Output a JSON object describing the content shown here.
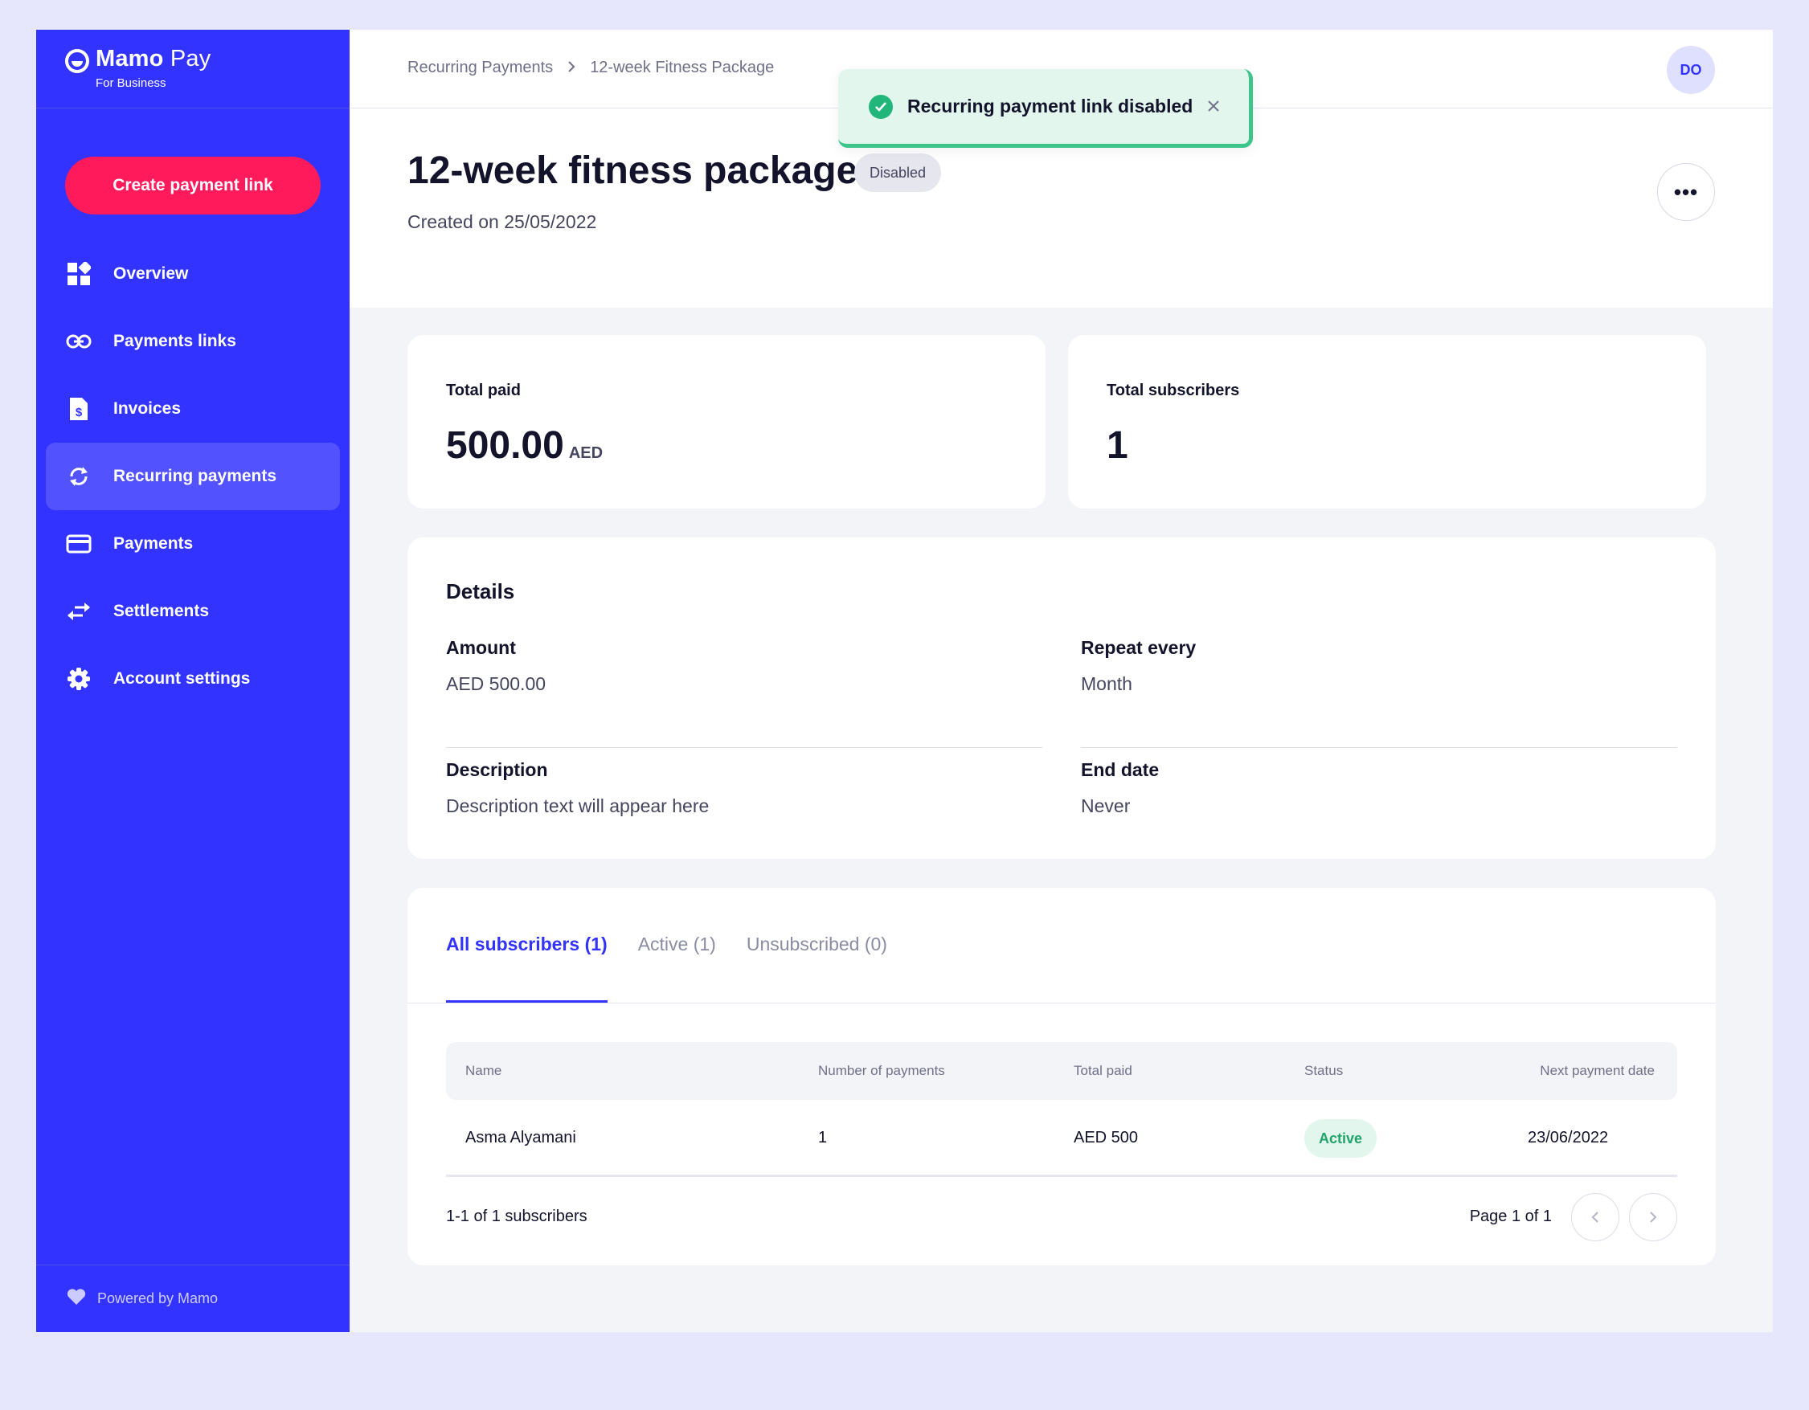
{
  "brand": {
    "name_bold": "Mamo",
    "name_rest": " Pay",
    "subtitle": "For Business"
  },
  "sidebar": {
    "create_label": "Create payment link",
    "items": [
      {
        "label": "Overview",
        "icon": "grid-icon"
      },
      {
        "label": "Payments links",
        "icon": "link-icon"
      },
      {
        "label": "Invoices",
        "icon": "invoice-icon"
      },
      {
        "label": "Recurring payments",
        "icon": "refresh-icon",
        "active": true
      },
      {
        "label": "Payments",
        "icon": "card-icon"
      },
      {
        "label": "Settlements",
        "icon": "transfer-icon"
      },
      {
        "label": "Account settings",
        "icon": "gear-icon"
      }
    ],
    "powered": "Powered by Mamo"
  },
  "topbar": {
    "breadcrumb": [
      "Recurring Payments",
      "12-week Fitness Package"
    ],
    "avatar": "DO"
  },
  "toast": {
    "message": "Recurring payment link disabled"
  },
  "header": {
    "title": "12-week fitness package",
    "badge": "Disabled",
    "created": "Created on 25/05/2022",
    "more": "•••"
  },
  "stats": {
    "total_paid_label": "Total paid",
    "total_paid_value": "500.00",
    "total_paid_unit": "AED",
    "subscribers_label": "Total subscribers",
    "subscribers_value": "1"
  },
  "details": {
    "title": "Details",
    "amount_label": "Amount",
    "amount_value": "AED 500.00",
    "repeat_label": "Repeat every",
    "repeat_value": "Month",
    "description_label": "Description",
    "description_value": "Description text will appear here",
    "end_label": "End date",
    "end_value": "Never"
  },
  "subscribers": {
    "tabs": [
      "All subscribers (1)",
      "Active (1)",
      "Unsubscribed (0)"
    ],
    "columns": [
      "Name",
      "Number of payments",
      "Total paid",
      "Status",
      "Next payment date"
    ],
    "rows": [
      {
        "name": "Asma Alyamani",
        "payments": "1",
        "total": "AED 500",
        "status": "Active",
        "next": "23/06/2022"
      }
    ],
    "count": "1-1 of 1 subscribers",
    "page": "Page 1 of 1"
  },
  "colors": {
    "brand": "#3333ff",
    "cta": "#ff1a5c",
    "success": "#22b67a"
  }
}
